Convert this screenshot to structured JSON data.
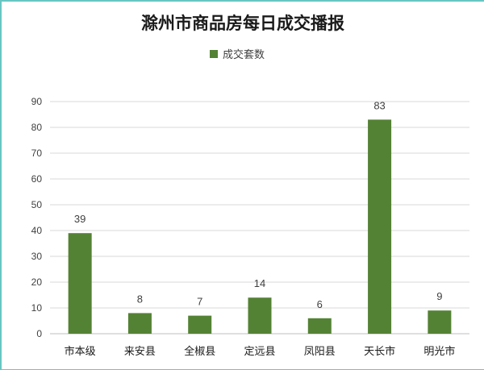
{
  "chart_data": {
    "type": "bar",
    "title": "滁州市商品房每日成交播报",
    "xlabel": "",
    "ylabel": "",
    "categories": [
      "市本级",
      "来安县",
      "全椒县",
      "定远县",
      "凤阳县",
      "天长市",
      "明光市"
    ],
    "series": [
      {
        "name": "成交套数",
        "values": [
          39,
          8,
          7,
          14,
          6,
          83,
          9
        ],
        "color": "#548235"
      }
    ],
    "ylim": [
      0,
      90
    ],
    "yticks": [
      0,
      10,
      20,
      30,
      40,
      50,
      60,
      70,
      80,
      90
    ],
    "grid": true,
    "legend_position": "top"
  }
}
